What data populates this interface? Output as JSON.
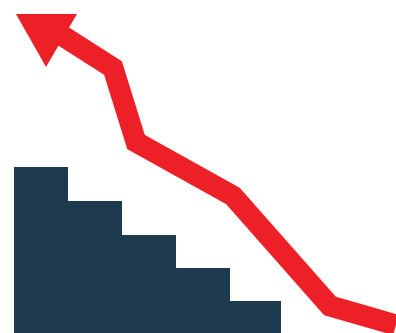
{
  "illustration": {
    "subject": "rising-arrow-over-staircase",
    "icons": {
      "staircase": "staircase-icon",
      "arrow": "rising-arrow-icon"
    },
    "colors": {
      "background": "#ffffff",
      "staircase": "#1e3a4f",
      "arrow": "#ee2027"
    }
  }
}
